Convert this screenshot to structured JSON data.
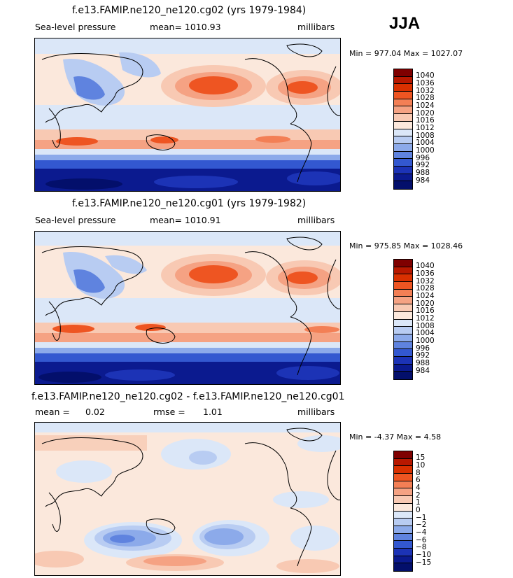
{
  "season": "JJA",
  "chart_data": [
    {
      "type": "heatmap",
      "title": "f.e13.FAMIP.ne120_ne120.cg02 (yrs 1979-1984)",
      "variable": "Sea-level pressure",
      "stat_text": "mean= 1010.93",
      "units": "millibars",
      "minmax_text": "Min = 977.04 Max = 1027.07",
      "min": 977.04,
      "max": 1027.07,
      "mean": 1010.93,
      "levels": [
        "1040",
        "1036",
        "1032",
        "1028",
        "1024",
        "1020",
        "1016",
        "1012",
        "1008",
        "1004",
        "1000",
        "996",
        "992",
        "988",
        "984"
      ],
      "colors": [
        "#7f0000",
        "#b81800",
        "#d93000",
        "#ee5522",
        "#f37f55",
        "#f5a283",
        "#f8c9b3",
        "#fbe8dc",
        "#dbe7f8",
        "#b8ccf2",
        "#8caaea",
        "#5f83df",
        "#3358d0",
        "#1c33b6",
        "#0b1a8f",
        "#030f6b"
      ]
    },
    {
      "type": "heatmap",
      "title": "f.e13.FAMIP.ne120_ne120.cg01 (yrs 1979-1982)",
      "variable": "Sea-level pressure",
      "stat_text": "mean= 1010.91",
      "units": "millibars",
      "minmax_text": "Min = 975.85 Max = 1028.46",
      "min": 975.85,
      "max": 1028.46,
      "mean": 1010.91,
      "levels": [
        "1040",
        "1036",
        "1032",
        "1028",
        "1024",
        "1020",
        "1016",
        "1012",
        "1008",
        "1004",
        "1000",
        "996",
        "992",
        "988",
        "984"
      ],
      "colors": [
        "#7f0000",
        "#b81800",
        "#d93000",
        "#ee5522",
        "#f37f55",
        "#f5a283",
        "#f8c9b3",
        "#fbe8dc",
        "#dbe7f8",
        "#b8ccf2",
        "#8caaea",
        "#5f83df",
        "#3358d0",
        "#1c33b6",
        "#0b1a8f",
        "#030f6b"
      ]
    },
    {
      "type": "heatmap",
      "title": "f.e13.FAMIP.ne120_ne120.cg02 - f.e13.FAMIP.ne120_ne120.cg01",
      "mean_label": "mean =",
      "mean_value": "0.02",
      "rmse_label": "rmse =",
      "rmse_value": "1.01",
      "units": "millibars",
      "minmax_text": "Min =  -4.37 Max =    4.58",
      "min": -4.37,
      "max": 4.58,
      "mean": 0.02,
      "rmse": 1.01,
      "levels": [
        "15",
        "10",
        "8",
        "6",
        "4",
        "2",
        "1",
        "0",
        "−1",
        "−2",
        "−4",
        "−6",
        "−8",
        "−10",
        "−15"
      ],
      "colors": [
        "#7f0000",
        "#b81800",
        "#d93000",
        "#ee5522",
        "#f37f55",
        "#f5a283",
        "#f8c9b3",
        "#fbe8dc",
        "#dbe7f8",
        "#b8ccf2",
        "#8caaea",
        "#5f83df",
        "#3358d0",
        "#1c33b6",
        "#0b1a8f",
        "#030f6b"
      ]
    }
  ]
}
